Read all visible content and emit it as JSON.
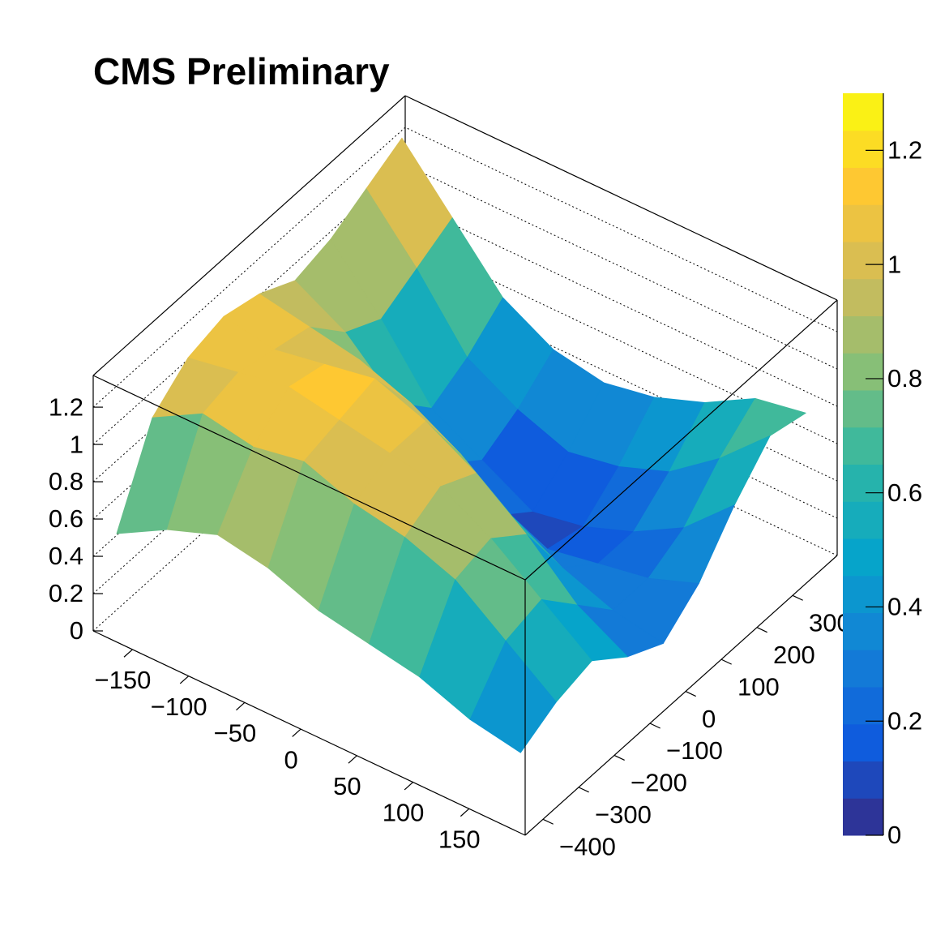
{
  "chart_data": {
    "type": "surface",
    "title": "CMS Preliminary",
    "x": [
      -180,
      -135,
      -90,
      -45,
      0,
      45,
      90,
      135,
      180
    ],
    "y": [
      -400,
      -300,
      -200,
      -100,
      0,
      100,
      200,
      300,
      400
    ],
    "z": [
      [
        0.45,
        0.6,
        0.7,
        0.65,
        0.55,
        0.5,
        0.45,
        0.35,
        0.3
      ],
      [
        0.9,
        1.05,
        1.0,
        1.05,
        0.95,
        0.9,
        0.8,
        0.6,
        0.4
      ],
      [
        1.05,
        1.1,
        1.15,
        1.1,
        1.05,
        1.0,
        0.85,
        0.65,
        0.45
      ],
      [
        1.1,
        1.05,
        1.1,
        1.15,
        1.05,
        0.9,
        0.7,
        0.45,
        0.3
      ],
      [
        1.05,
        1.0,
        0.95,
        0.85,
        0.7,
        0.5,
        0.35,
        0.25,
        0.2
      ],
      [
        0.95,
        0.8,
        0.55,
        0.35,
        0.2,
        0.15,
        0.2,
        0.25,
        0.35
      ],
      [
        1.0,
        0.7,
        0.35,
        0.2,
        0.05,
        0.1,
        0.2,
        0.35,
        0.6
      ],
      [
        1.1,
        0.8,
        0.45,
        0.3,
        0.2,
        0.25,
        0.35,
        0.55,
        0.8
      ],
      [
        1.2,
        0.9,
        0.6,
        0.45,
        0.4,
        0.45,
        0.55,
        0.7,
        0.75
      ]
    ],
    "xlim": [
      -185,
      200
    ],
    "ylim": [
      -450,
      425
    ],
    "zlim": [
      0,
      1.37
    ],
    "xticks": [
      {
        "value": -150,
        "label": "−150"
      },
      {
        "value": -100,
        "label": "−100"
      },
      {
        "value": -50,
        "label": "−50"
      },
      0,
      50,
      100,
      150
    ],
    "yticks": [
      {
        "value": -400,
        "label": "−400"
      },
      {
        "value": -300,
        "label": "−300"
      },
      {
        "value": -200,
        "label": "−200"
      },
      {
        "value": -100,
        "label": "−100"
      },
      0,
      100,
      200,
      300
    ],
    "zticks": [
      0,
      0.2,
      0.4,
      0.6,
      0.8,
      1,
      1.2
    ],
    "colorbar": {
      "lim": [
        0,
        1.3
      ],
      "ticks": [
        0,
        0.2,
        0.4,
        0.6,
        0.8,
        1,
        1.2
      ],
      "levels": 20
    },
    "palette": [
      "#352a87",
      "#0f5cdd",
      "#1481d6",
      "#06a4ca",
      "#2eb7a4",
      "#87bf77",
      "#d1bb59",
      "#fec832",
      "#f9fb0e"
    ],
    "grid": true
  }
}
